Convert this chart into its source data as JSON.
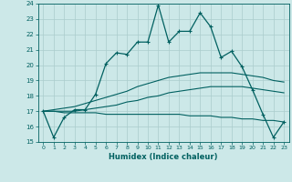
{
  "xlabel": "Humidex (Indice chaleur)",
  "x": [
    0,
    1,
    2,
    3,
    4,
    5,
    6,
    7,
    8,
    9,
    10,
    11,
    12,
    13,
    14,
    15,
    16,
    17,
    18,
    19,
    20,
    21,
    22,
    23
  ],
  "line1": [
    17.0,
    15.3,
    16.6,
    17.1,
    17.1,
    18.1,
    20.1,
    20.8,
    20.7,
    21.5,
    21.5,
    23.9,
    21.5,
    22.2,
    22.2,
    23.4,
    22.5,
    20.5,
    20.9,
    19.9,
    18.4,
    16.8,
    15.3,
    16.3
  ],
  "trend_upper": [
    17.0,
    17.1,
    17.2,
    17.3,
    17.5,
    17.7,
    17.9,
    18.1,
    18.3,
    18.6,
    18.8,
    19.0,
    19.2,
    19.3,
    19.4,
    19.5,
    19.5,
    19.5,
    19.5,
    19.4,
    19.3,
    19.2,
    19.0,
    18.9
  ],
  "trend_mid": [
    17.0,
    17.0,
    17.0,
    17.0,
    17.1,
    17.2,
    17.3,
    17.4,
    17.6,
    17.7,
    17.9,
    18.0,
    18.2,
    18.3,
    18.4,
    18.5,
    18.6,
    18.6,
    18.6,
    18.6,
    18.5,
    18.4,
    18.3,
    18.2
  ],
  "trend_lower": [
    17.0,
    17.0,
    16.9,
    16.9,
    16.9,
    16.9,
    16.8,
    16.8,
    16.8,
    16.8,
    16.8,
    16.8,
    16.8,
    16.8,
    16.7,
    16.7,
    16.7,
    16.6,
    16.6,
    16.5,
    16.5,
    16.4,
    16.4,
    16.3
  ],
  "bg_color": "#cce8e8",
  "line_color": "#006060",
  "grid_color": "#aacccc",
  "ylim": [
    15,
    24
  ],
  "xlim_min": -0.5,
  "xlim_max": 23.5
}
